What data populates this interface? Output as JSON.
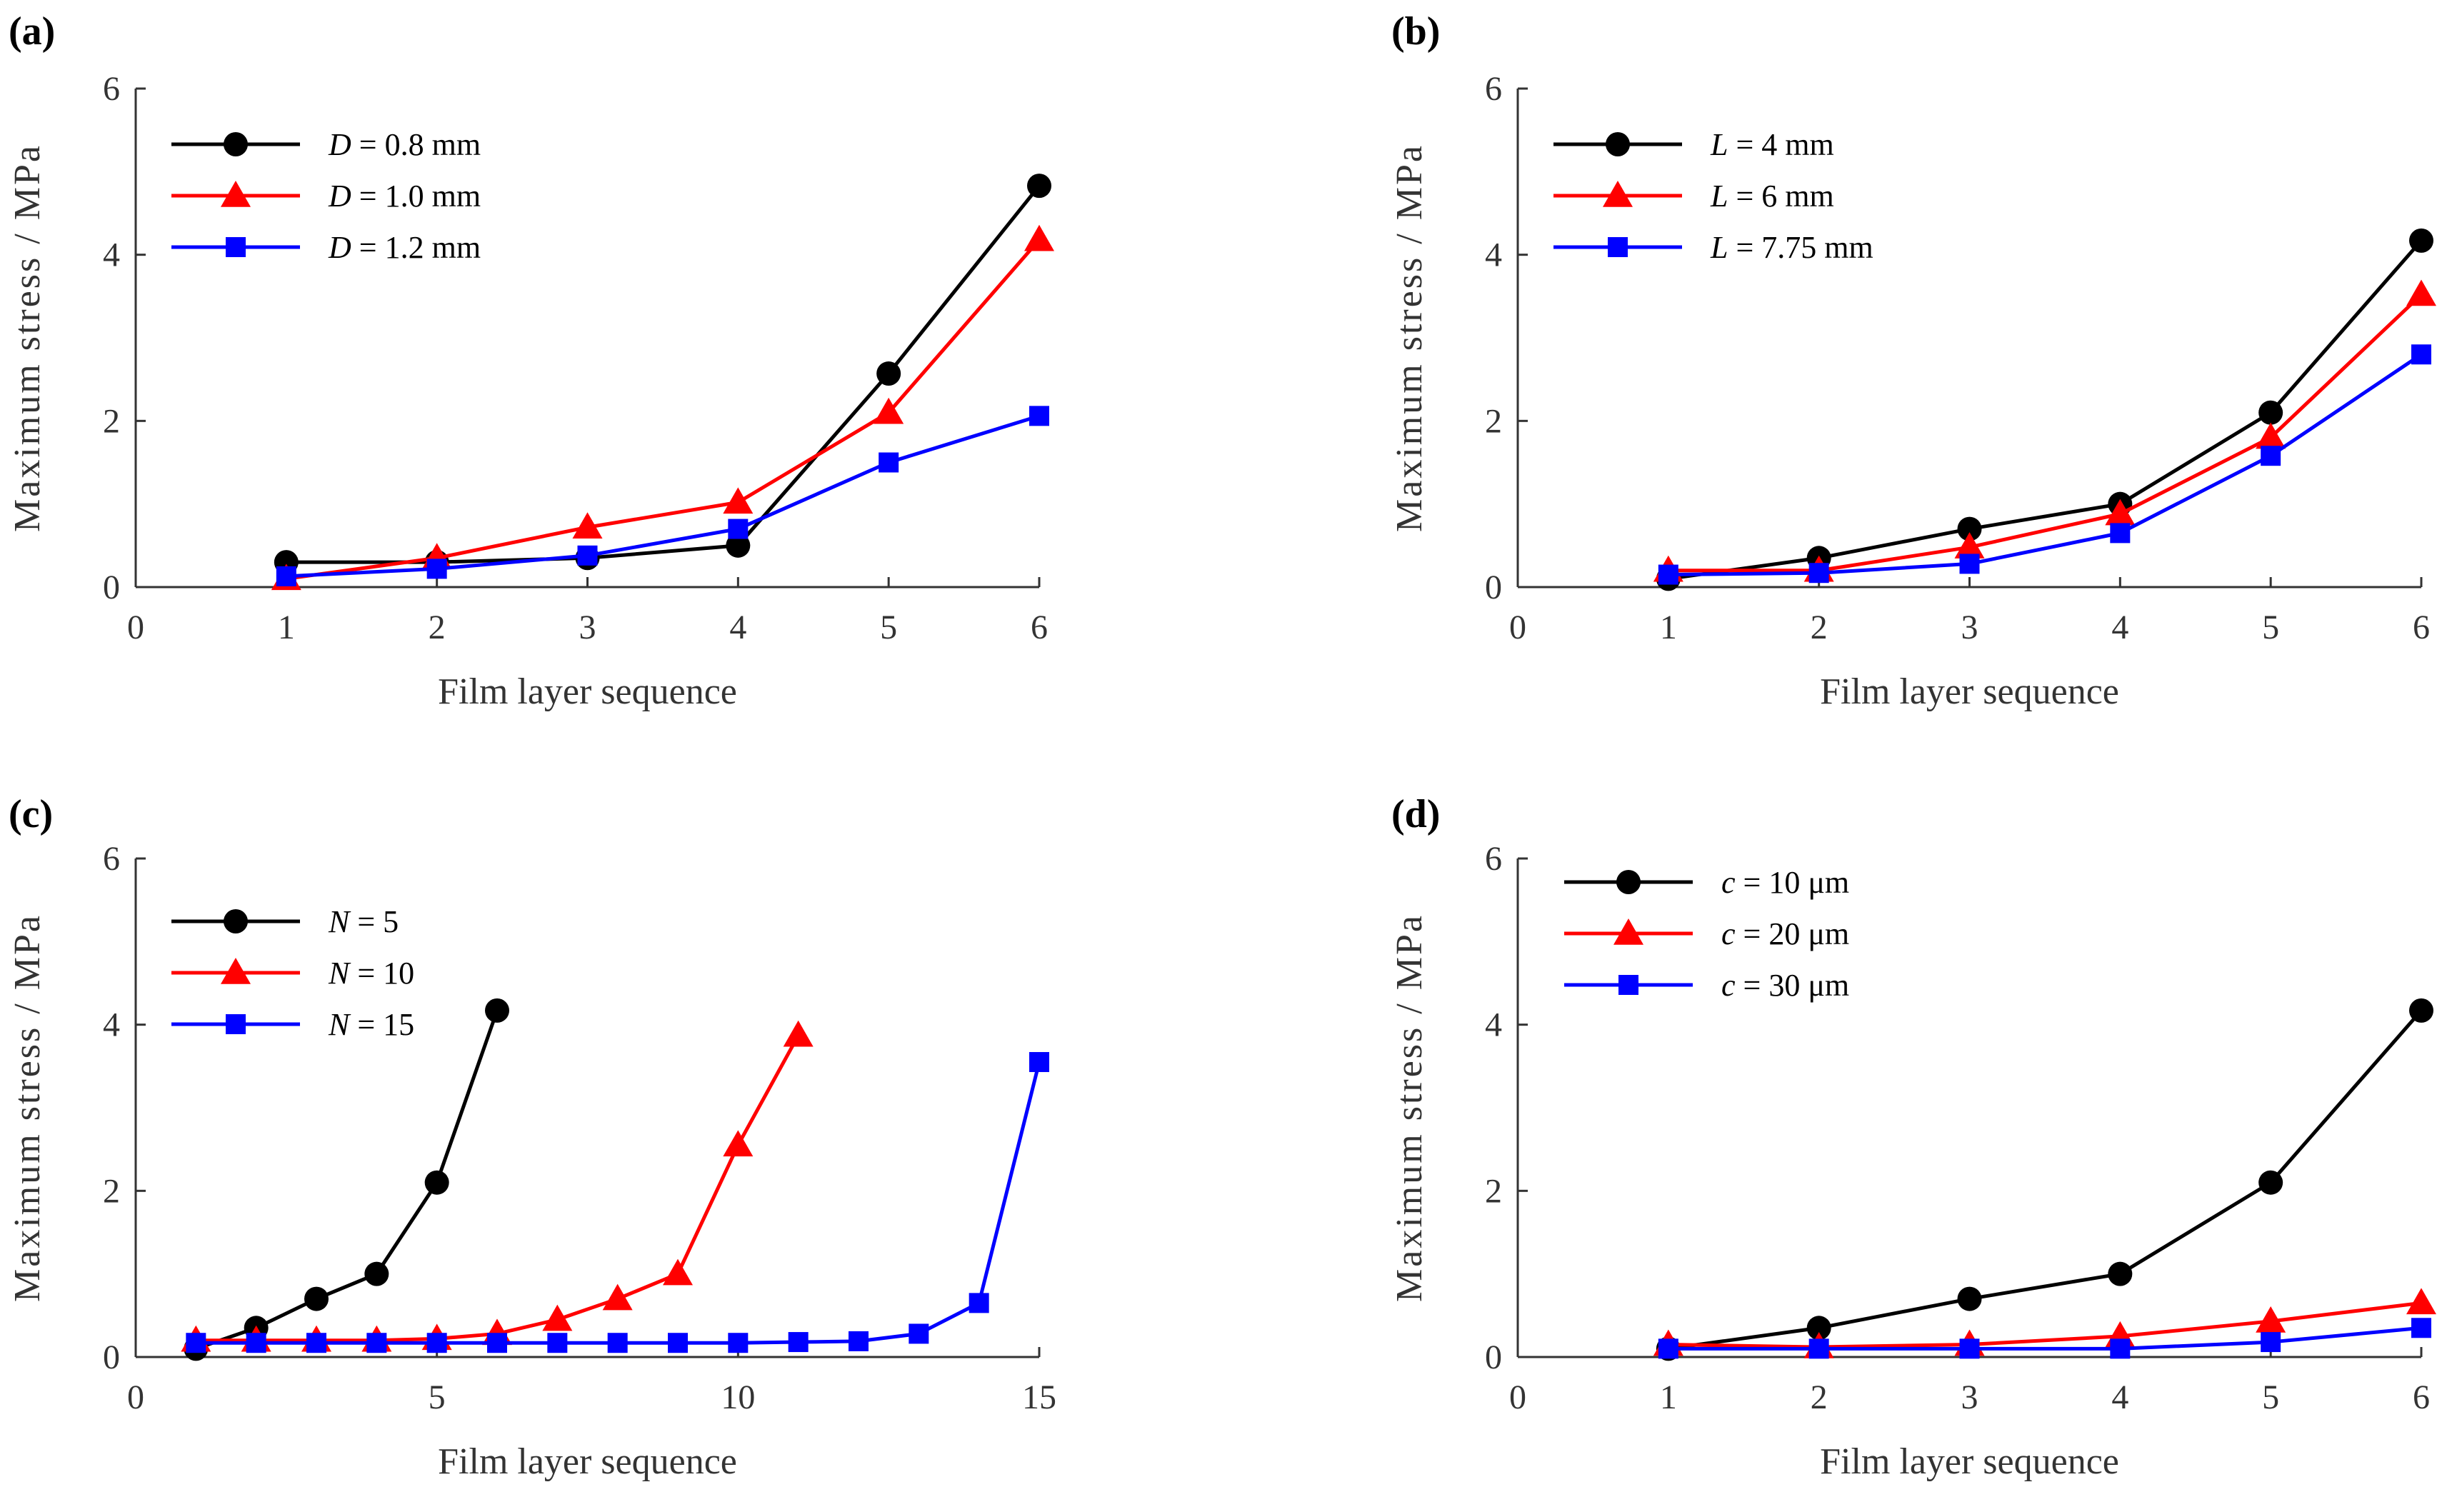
{
  "chart_data": [
    {
      "type": "line",
      "panel_label": "(a)",
      "xlabel": "Film layer sequence",
      "ylabel": "Maximum stress / MPa",
      "xlim": [
        0,
        6
      ],
      "ylim": [
        0,
        6
      ],
      "xticks": [
        "0",
        "1",
        "2",
        "3",
        "4",
        "5",
        "6"
      ],
      "yticks": [
        "0",
        "2",
        "4",
        "6"
      ],
      "grid": false,
      "legend_position": "top-left",
      "series": [
        {
          "var": "D",
          "rest": " = 0.8 mm",
          "color": "#000000",
          "marker": "circle",
          "x": [
            1,
            2,
            3,
            4,
            5,
            6
          ],
          "values": [
            0.3,
            0.3,
            0.35,
            0.5,
            2.57,
            4.83
          ]
        },
        {
          "var": "D",
          "rest": " = 1.0 mm",
          "color": "#ff0000",
          "marker": "triangle",
          "x": [
            1,
            2,
            3,
            4,
            5,
            6
          ],
          "values": [
            0.1,
            0.35,
            0.72,
            1.02,
            2.1,
            4.18
          ]
        },
        {
          "var": "D",
          "rest": " = 1.2 mm",
          "color": "#0000ff",
          "marker": "square",
          "x": [
            1,
            2,
            3,
            4,
            5,
            6
          ],
          "values": [
            0.13,
            0.22,
            0.38,
            0.7,
            1.5,
            2.06
          ]
        }
      ]
    },
    {
      "type": "line",
      "panel_label": "(b)",
      "xlabel": "Film layer sequence",
      "ylabel": "Maximum stress / MPa",
      "xlim": [
        0,
        6
      ],
      "ylim": [
        0,
        6
      ],
      "xticks": [
        "0",
        "1",
        "2",
        "3",
        "4",
        "5",
        "6"
      ],
      "yticks": [
        "0",
        "2",
        "4",
        "6"
      ],
      "grid": false,
      "legend_position": "top-left",
      "series": [
        {
          "var": "L",
          "rest": " = 4 mm",
          "color": "#000000",
          "marker": "circle",
          "x": [
            1,
            2,
            3,
            4,
            5,
            6
          ],
          "values": [
            0.1,
            0.35,
            0.7,
            1.0,
            2.1,
            4.17
          ]
        },
        {
          "var": "L",
          "rest": " = 6 mm",
          "color": "#ff0000",
          "marker": "triangle",
          "x": [
            1,
            2,
            3,
            4,
            5,
            6
          ],
          "values": [
            0.2,
            0.2,
            0.48,
            0.88,
            1.8,
            3.52
          ]
        },
        {
          "var": "L",
          "rest": " = 7.75 mm",
          "color": "#0000ff",
          "marker": "square",
          "x": [
            1,
            2,
            3,
            4,
            5,
            6
          ],
          "values": [
            0.15,
            0.17,
            0.28,
            0.65,
            1.58,
            2.8
          ]
        }
      ]
    },
    {
      "type": "line",
      "panel_label": "(c)",
      "xlabel": "Film layer sequence",
      "ylabel": "Maximum stress / MPa",
      "xlim": [
        0,
        15
      ],
      "ylim": [
        0,
        6
      ],
      "xticks": [
        "0",
        "5",
        "10",
        "15"
      ],
      "yticks": [
        "0",
        "2",
        "4",
        "6"
      ],
      "grid": false,
      "legend_position": "top-left",
      "series": [
        {
          "var": "N",
          "rest": " = 5",
          "color": "#000000",
          "marker": "circle",
          "x": [
            1,
            2,
            3,
            4,
            5,
            6
          ],
          "values": [
            0.1,
            0.35,
            0.7,
            1.0,
            2.1,
            4.17
          ]
        },
        {
          "var": "N",
          "rest": " = 10",
          "color": "#ff0000",
          "marker": "triangle",
          "x": [
            1,
            2,
            3,
            4,
            5,
            6,
            7,
            8,
            9,
            10,
            11
          ],
          "values": [
            0.2,
            0.2,
            0.2,
            0.2,
            0.22,
            0.28,
            0.45,
            0.7,
            1.0,
            2.55,
            3.87
          ]
        },
        {
          "var": "N",
          "rest": " = 15",
          "color": "#0000ff",
          "marker": "square",
          "x": [
            1,
            2,
            3,
            4,
            5,
            6,
            7,
            8,
            9,
            10,
            11,
            12,
            13,
            14,
            15
          ],
          "values": [
            0.17,
            0.17,
            0.17,
            0.17,
            0.17,
            0.17,
            0.17,
            0.17,
            0.17,
            0.17,
            0.18,
            0.19,
            0.28,
            0.65,
            3.55
          ]
        }
      ]
    },
    {
      "type": "line",
      "panel_label": "(d)",
      "xlabel": "Film layer sequence",
      "ylabel": "Maximum stress / MPa",
      "xlim": [
        0,
        6
      ],
      "ylim": [
        0,
        6
      ],
      "xticks": [
        "0",
        "1",
        "2",
        "3",
        "4",
        "5",
        "6"
      ],
      "yticks": [
        "0",
        "2",
        "4",
        "6"
      ],
      "grid": false,
      "legend_position": "top-left",
      "series": [
        {
          "var": "c",
          "rest": " = 10 μm",
          "color": "#000000",
          "marker": "circle",
          "x": [
            1,
            2,
            3,
            4,
            5,
            6
          ],
          "values": [
            0.1,
            0.35,
            0.7,
            1.0,
            2.1,
            4.17
          ]
        },
        {
          "var": "c",
          "rest": " = 20 μm",
          "color": "#ff0000",
          "marker": "triangle",
          "x": [
            1,
            2,
            3,
            4,
            5,
            6
          ],
          "values": [
            0.15,
            0.12,
            0.15,
            0.25,
            0.43,
            0.65
          ]
        },
        {
          "var": "c",
          "rest": " = 30 μm",
          "color": "#0000ff",
          "marker": "square",
          "x": [
            1,
            2,
            3,
            4,
            5,
            6
          ],
          "values": [
            0.1,
            0.1,
            0.1,
            0.1,
            0.18,
            0.35
          ]
        }
      ]
    }
  ]
}
